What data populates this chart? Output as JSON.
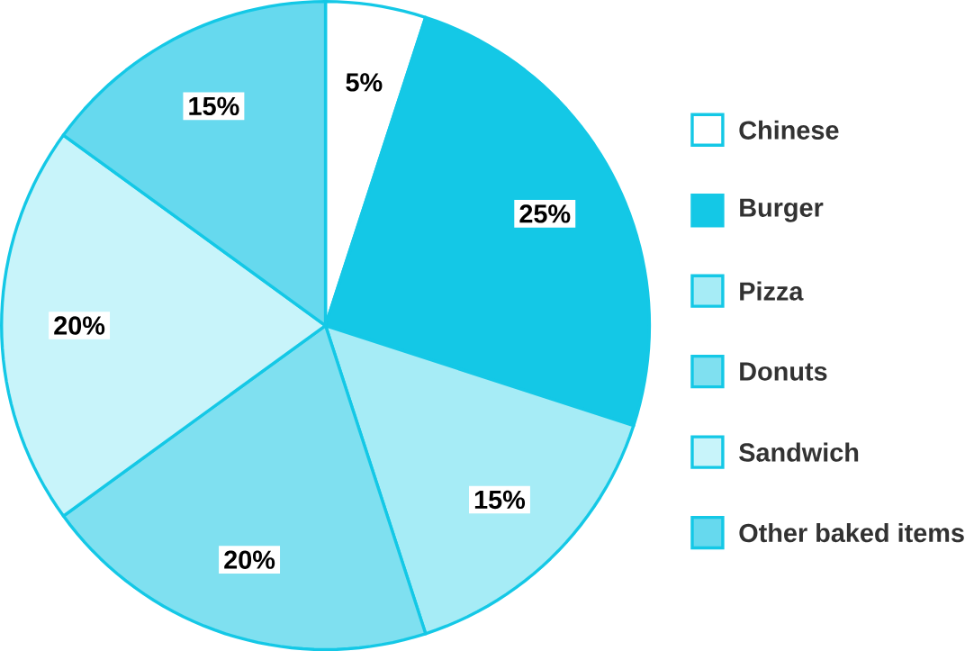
{
  "chart_data": {
    "type": "pie",
    "categories": [
      "Chinese",
      "Burger",
      "Pizza",
      "Donuts",
      "Sandwich",
      "Other baked items"
    ],
    "values": [
      5,
      25,
      15,
      20,
      20,
      15
    ],
    "value_labels": [
      "5%",
      "25%",
      "15%",
      "20%",
      "20%",
      "15%"
    ],
    "colors": [
      "#ffffff",
      "#14c8e6",
      "#a6ecf6",
      "#7fe0f0",
      "#c8f4fa",
      "#66d9ee"
    ],
    "legend": "right"
  }
}
